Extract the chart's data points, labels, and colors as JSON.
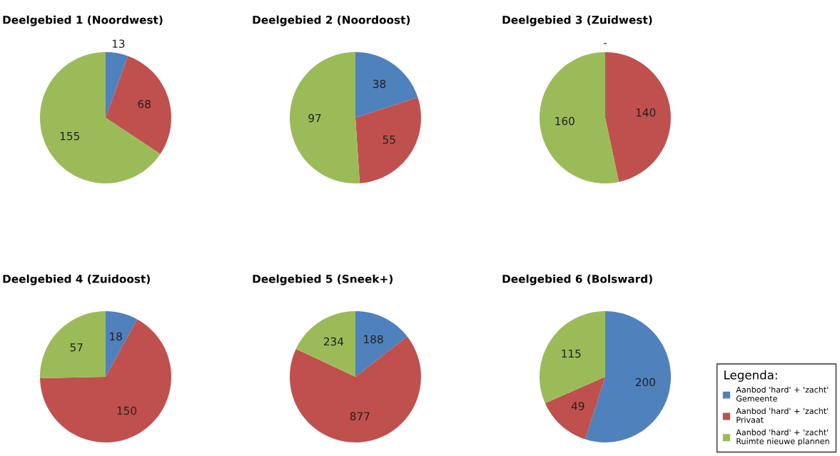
{
  "chart_data": [
    {
      "type": "pie",
      "title": "Deelgebied 1 (Noordwest)",
      "categories": [
        null,
        null,
        null
      ],
      "values": [
        13,
        68,
        155
      ],
      "colors": [
        "#4f81bd",
        "#c0504d",
        "#9bbb59"
      ],
      "data_labels": true
    },
    {
      "type": "pie",
      "title": "Deelgebied 2 (Noordoost)",
      "categories": [
        null,
        null,
        null
      ],
      "values": [
        38,
        55,
        97
      ],
      "colors": [
        "#4f81bd",
        "#c0504d",
        "#9bbb59"
      ],
      "data_labels": true
    },
    {
      "type": "pie",
      "title": "Deelgebied 3 (Zuidwest)",
      "categories": [
        null,
        null,
        null
      ],
      "values": [
        0,
        140,
        160
      ],
      "value_labels": [
        "-",
        "140",
        "160"
      ],
      "colors": [
        "#4f81bd",
        "#c0504d",
        "#9bbb59"
      ]
    },
    {
      "type": "pie",
      "title": "Deelgebied 4 (Zuidoost)",
      "categories": [
        null,
        null,
        null
      ],
      "values": [
        18,
        150,
        57
      ],
      "colors": [
        "#4f81bd",
        "#c0504d",
        "#9bbb59"
      ],
      "data_labels": true
    },
    {
      "type": "pie",
      "title": "Deelgebied 5 (Sneek+)",
      "categories": [
        null,
        null,
        null
      ],
      "values": [
        188,
        877,
        234
      ],
      "colors": [
        "#4f81bd",
        "#c0504d",
        "#9bbb59"
      ],
      "data_labels": true
    },
    {
      "type": "pie",
      "title": "Deelgebied 6 (Bolsward)",
      "categories": [
        "Aanbod 'hard' + 'zacht'\nGemeente",
        "Aanbod 'hard' + 'zacht'\nPrivaat",
        "Aanbod 'hard' + 'zacht'\nRuimte nieuwe plannen"
      ],
      "values": [
        200,
        49,
        115
      ],
      "colors": [
        "#4f81bd",
        "#c0504d",
        "#9bbb59"
      ],
      "data_labels": true,
      "legend": "bottom right",
      "legend_title": "Legenda:"
    }
  ]
}
